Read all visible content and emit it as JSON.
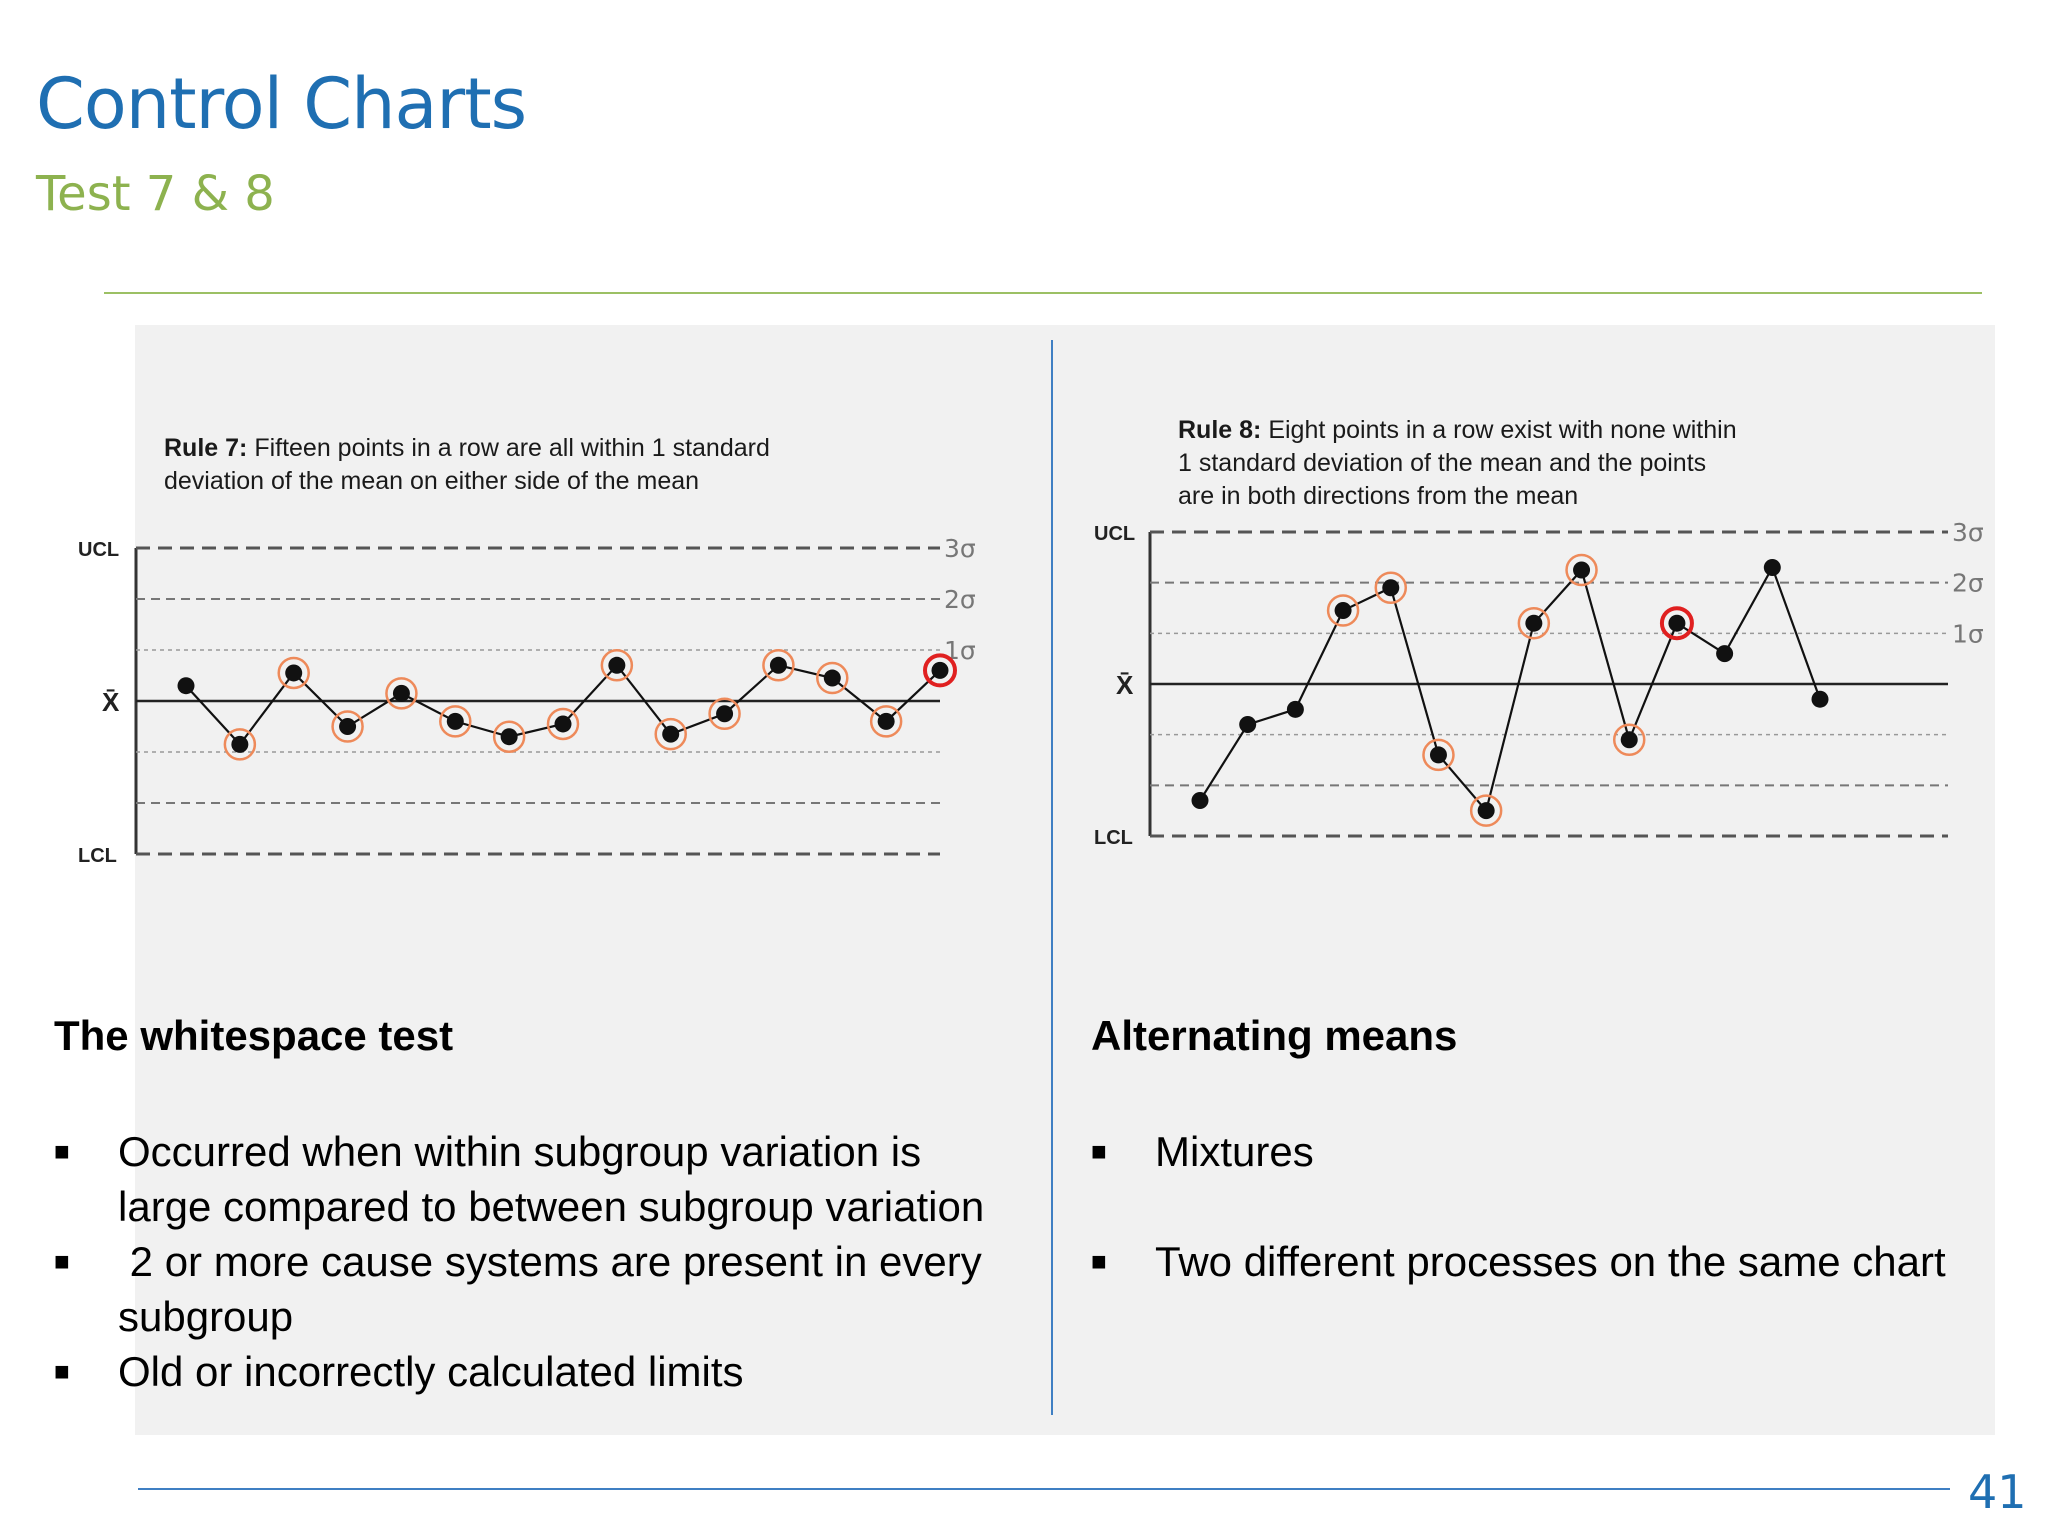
{
  "slide": {
    "title": "Control Charts",
    "subtitle": "Test 7 & 8",
    "page_number": "41",
    "colors": {
      "title": "#1f6fb2",
      "subtitle": "#8db24f",
      "accent_line": "#9cc064",
      "divider": "#3f7fc3",
      "highlight_ring": "#ee8a5a",
      "flag_ring": "#e02020"
    }
  },
  "left": {
    "rule_label": "Rule 7:",
    "rule_text_line1": "Fifteen points in a row are all within 1 standard",
    "rule_text_line2": "deviation of the mean on either side of the mean",
    "heading": "The whitespace test",
    "bullets": [
      "Occurred when within subgroup variation is large compared to between subgroup variation",
      " 2 or more cause systems are present in every subgroup",
      "Old or incorrectly calculated limits"
    ],
    "bullet_glyph": "■"
  },
  "right": {
    "rule_label": "Rule 8:",
    "rule_text_line1": "Eight points in a row exist with none within",
    "rule_text_line2": "1 standard deviation of the mean and the points",
    "rule_text_line3": "are in both directions from the mean",
    "heading": "Alternating means",
    "bullets": [
      "Mixtures",
      "Two different processes on the same chart"
    ],
    "bullet_glyph": "■"
  },
  "chart_data": [
    {
      "type": "line",
      "title": "Rule 7",
      "ylim": [
        -3,
        3
      ],
      "line_labels": {
        "ucl": "UCL",
        "lcl": "LCL",
        "mean": "X̄",
        "sigma": [
          "3σ",
          "2σ",
          "1σ"
        ]
      },
      "x": [
        1,
        2,
        3,
        4,
        5,
        6,
        7,
        8,
        9,
        10,
        11,
        12,
        13,
        14,
        15
      ],
      "values": [
        0.3,
        -0.85,
        0.55,
        -0.5,
        0.15,
        -0.4,
        -0.7,
        -0.45,
        0.7,
        -0.65,
        -0.25,
        0.7,
        0.45,
        -0.4,
        0.6
      ],
      "ring": [
        "none",
        "ring",
        "ring",
        "ring",
        "ring",
        "ring",
        "ring",
        "ring",
        "ring",
        "ring",
        "ring",
        "ring",
        "ring",
        "ring",
        "flag"
      ]
    },
    {
      "type": "line",
      "title": "Rule 8",
      "ylim": [
        -3,
        3
      ],
      "line_labels": {
        "ucl": "UCL",
        "lcl": "LCL",
        "mean": "X̄",
        "sigma": [
          "3σ",
          "2σ",
          "1σ"
        ]
      },
      "x": [
        1,
        2,
        3,
        4,
        5,
        6,
        7,
        8,
        9,
        10,
        11,
        12,
        13,
        14
      ],
      "values": [
        -2.3,
        -0.8,
        -0.5,
        1.45,
        1.9,
        -1.4,
        -2.5,
        1.2,
        2.25,
        -1.1,
        1.2,
        0.6,
        2.3,
        -0.3
      ],
      "ring": [
        "none",
        "none",
        "none",
        "ring",
        "ring",
        "ring",
        "ring",
        "ring",
        "ring",
        "ring",
        "flag",
        "none",
        "none",
        "none"
      ]
    }
  ]
}
